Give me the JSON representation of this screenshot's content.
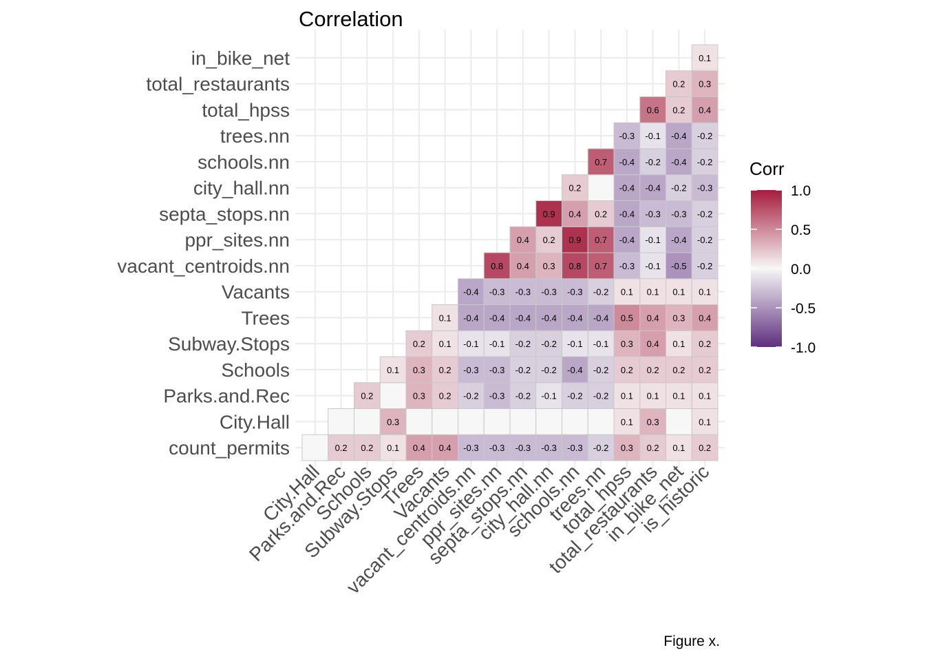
{
  "chart_data": {
    "type": "heatmap",
    "title": "Correlation",
    "caption": "Figure x.",
    "variables": [
      "count_permits",
      "City.Hall",
      "Parks.and.Rec",
      "Schools",
      "Subway.Stops",
      "Trees",
      "Vacants",
      "vacant_centroids.nn",
      "ppr_sites.nn",
      "septa_stops.nn",
      "city_hall.nn",
      "schools.nn",
      "trees.nn",
      "total_hpss",
      "total_restaurants",
      "in_bike_net",
      "is_historic"
    ],
    "y_labels": [
      "count_permits",
      "City.Hall",
      "Parks.and.Rec",
      "Schools",
      "Subway.Stops",
      "Trees",
      "Vacants",
      "vacant_centroids.nn",
      "ppr_sites.nn",
      "septa_stops.nn",
      "city_hall.nn",
      "schools.nn",
      "trees.nn",
      "total_hpss",
      "total_restaurants",
      "in_bike_net"
    ],
    "x_labels": [
      "City.Hall",
      "Parks.and.Rec",
      "Schools",
      "Subway.Stops",
      "Trees",
      "Vacants",
      "vacant_centroids.nn",
      "ppr_sites.nn",
      "septa_stops.nn",
      "city_hall.nn",
      "schools.nn",
      "trees.nn",
      "total_hpss",
      "total_restaurants",
      "in_bike_net",
      "is_historic"
    ],
    "matrix": [
      [
        0,
        0.2,
        0.2,
        0.1,
        0.4,
        0.4,
        -0.3,
        -0.3,
        -0.3,
        -0.3,
        -0.3,
        -0.2,
        0.3,
        0.2,
        0.1,
        0.2
      ],
      [
        null,
        0,
        0,
        0.3,
        0,
        0,
        0,
        0,
        0,
        0,
        0,
        0,
        0.1,
        0.3,
        0,
        0.1
      ],
      [
        null,
        null,
        0.2,
        0,
        0.3,
        0.2,
        -0.2,
        -0.3,
        -0.2,
        -0.1,
        -0.2,
        -0.2,
        0.1,
        0.1,
        0.1,
        0.1
      ],
      [
        null,
        null,
        null,
        0.1,
        0.3,
        0.2,
        -0.3,
        -0.3,
        -0.2,
        -0.2,
        -0.4,
        -0.2,
        0.2,
        0.2,
        0.2,
        0.2
      ],
      [
        null,
        null,
        null,
        null,
        0.2,
        0.1,
        -0.1,
        -0.1,
        -0.2,
        -0.2,
        -0.1,
        -0.1,
        0.3,
        0.4,
        0.1,
        0.2
      ],
      [
        null,
        null,
        null,
        null,
        null,
        0.1,
        -0.4,
        -0.4,
        -0.4,
        -0.4,
        -0.4,
        -0.4,
        0.5,
        0.4,
        0.3,
        0.4
      ],
      [
        null,
        null,
        null,
        null,
        null,
        null,
        -0.4,
        -0.3,
        -0.3,
        -0.3,
        -0.3,
        -0.2,
        0.1,
        0.1,
        0.1,
        0.1
      ],
      [
        null,
        null,
        null,
        null,
        null,
        null,
        null,
        0.8,
        0.4,
        0.3,
        0.8,
        0.7,
        -0.3,
        -0.1,
        -0.5,
        -0.2
      ],
      [
        null,
        null,
        null,
        null,
        null,
        null,
        null,
        null,
        0.4,
        0.2,
        0.9,
        0.7,
        -0.4,
        -0.1,
        -0.4,
        -0.2
      ],
      [
        null,
        null,
        null,
        null,
        null,
        null,
        null,
        null,
        null,
        0.9,
        0.4,
        0.2,
        -0.4,
        -0.3,
        -0.3,
        -0.2
      ],
      [
        null,
        null,
        null,
        null,
        null,
        null,
        null,
        null,
        null,
        null,
        0.2,
        0,
        -0.4,
        -0.4,
        -0.2,
        -0.3
      ],
      [
        null,
        null,
        null,
        null,
        null,
        null,
        null,
        null,
        null,
        null,
        null,
        0.7,
        -0.4,
        -0.2,
        -0.4,
        -0.2
      ],
      [
        null,
        null,
        null,
        null,
        null,
        null,
        null,
        null,
        null,
        null,
        null,
        null,
        -0.3,
        -0.1,
        -0.4,
        -0.2
      ],
      [
        null,
        null,
        null,
        null,
        null,
        null,
        null,
        null,
        null,
        null,
        null,
        null,
        null,
        0.6,
        0.2,
        0.4
      ],
      [
        null,
        null,
        null,
        null,
        null,
        null,
        null,
        null,
        null,
        null,
        null,
        null,
        null,
        null,
        0.2,
        0.3
      ],
      [
        null,
        null,
        null,
        null,
        null,
        null,
        null,
        null,
        null,
        null,
        null,
        null,
        null,
        null,
        null,
        0.1
      ]
    ],
    "legend": {
      "title": "Corr",
      "ticks": [
        "1.0",
        "0.5",
        "0.0",
        "-0.5",
        "-1.0"
      ],
      "tick_values": [
        1.0,
        0.5,
        0.0,
        -0.5,
        -1.0
      ],
      "range": [
        -1,
        1
      ],
      "placement": "right"
    },
    "colors": {
      "low": "#5e2f7e",
      "mid": "#f7f7f7",
      "high": "#a51c3d",
      "grid": "#ebebeb",
      "cell_border": "#c8c8c8"
    },
    "grid": true
  }
}
